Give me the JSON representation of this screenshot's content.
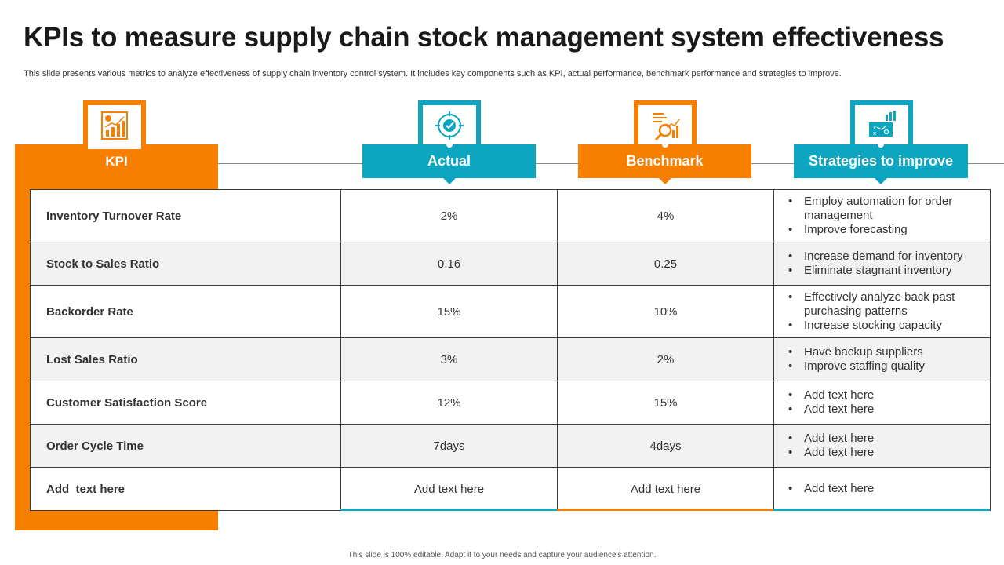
{
  "title": "KPIs to measure supply chain stock management system effectiveness",
  "subtitle": "This slide presents various metrics to analyze effectiveness of supply chain inventory control system. It includes key components such as KPI, actual performance, benchmark performance and strategies to improve.",
  "columns": {
    "kpi": "KPI",
    "actual": "Actual",
    "benchmark": "Benchmark",
    "strategies": "Strategies to improve"
  },
  "icons": {
    "kpi": "bar-chart-document-icon",
    "actual": "target-check-icon",
    "benchmark": "analysis-magnifier-icon",
    "strategies": "strategy-board-icon"
  },
  "rows": [
    {
      "kpi": "Inventory Turnover Rate",
      "actual": "2%",
      "benchmark": "4%",
      "strategies": [
        "Employ automation for order management",
        "Improve forecasting"
      ]
    },
    {
      "kpi": "Stock to Sales Ratio",
      "actual": "0.16",
      "benchmark": "0.25",
      "strategies": [
        "Increase demand for inventory",
        "Eliminate stagnant inventory"
      ]
    },
    {
      "kpi": "Backorder Rate",
      "actual": "15%",
      "benchmark": "10%",
      "strategies": [
        "Effectively analyze back past purchasing patterns",
        "Increase stocking capacity"
      ]
    },
    {
      "kpi": "Lost Sales Ratio",
      "actual": "3%",
      "benchmark": "2%",
      "strategies": [
        "Have backup suppliers",
        "Improve staffing quality"
      ]
    },
    {
      "kpi": "Customer Satisfaction Score",
      "actual": "12%",
      "benchmark": "15%",
      "strategies": [
        "Add text here",
        "Add text here"
      ]
    },
    {
      "kpi": "Order Cycle Time",
      "actual": "7days",
      "benchmark": "4days",
      "strategies": [
        "Add text here",
        "Add text here"
      ]
    },
    {
      "kpi": "Add  text here",
      "actual": "Add text here",
      "benchmark": "Add text here",
      "strategies": [
        "Add text here"
      ]
    }
  ],
  "colors": {
    "orange": "#f77f00",
    "teal": "#0ea5c0"
  },
  "footer": "This slide is 100% editable. Adapt it to your needs and capture your audience's attention."
}
